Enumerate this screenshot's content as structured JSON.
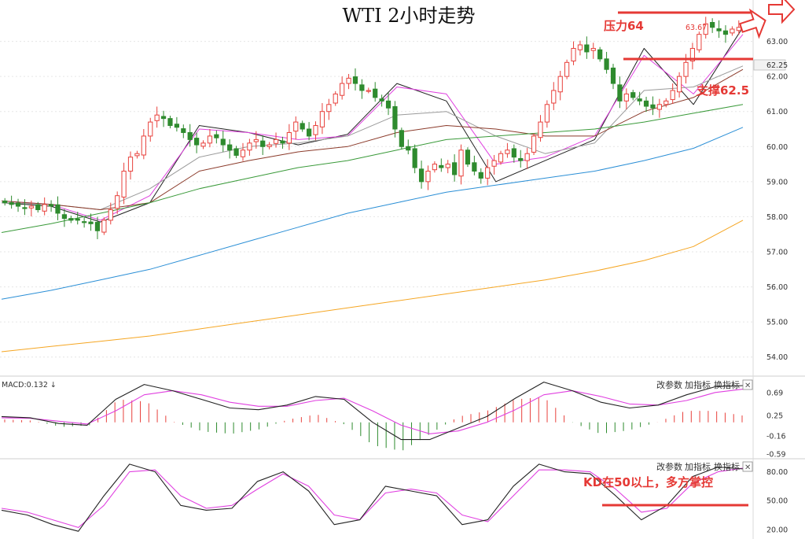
{
  "title": "WTI 2小时走势",
  "annotations": {
    "resistance": "压力64",
    "support": "支撑62.5",
    "kd_note": "KD在50以上，多方掌控",
    "price_label": "63.67",
    "current_price": "62.25"
  },
  "toolbar": {
    "params": "改参数",
    "add": "加指标",
    "switch": "换指标",
    "close": "✕"
  },
  "macd_label": "MACD:0.132 ↓",
  "colors": {
    "up": "#e8413c",
    "down": "#2e8b2e",
    "ma_black": "#222222",
    "ma_magenta": "#e040e0",
    "ma_gray": "#9a9a9a",
    "ma_brown": "#8b3a2a",
    "ma_green": "#3a9a3a",
    "ma_blue": "#2b8fd6",
    "ma_orange": "#f5a623",
    "annotation": "#e53935"
  },
  "chart_data": [
    {
      "type": "candlestick",
      "title": "WTI 2小时走势",
      "ylim": [
        53.5,
        64.0
      ],
      "yticks": [
        "63.00",
        "62.00",
        "61.00",
        "60.00",
        "59.00",
        "58.00",
        "57.00",
        "56.00",
        "55.00",
        "54.00"
      ],
      "ohlc_close": [
        58.4,
        58.35,
        58.3,
        58.25,
        58.3,
        58.2,
        58.35,
        58.3,
        58.1,
        57.95,
        57.9,
        57.9,
        57.85,
        57.8,
        57.6,
        57.9,
        58.2,
        58.6,
        59.3,
        59.7,
        59.8,
        60.3,
        60.7,
        60.9,
        60.8,
        60.6,
        60.55,
        60.4,
        60.2,
        60.05,
        60.1,
        60.3,
        60.25,
        60.05,
        59.9,
        59.75,
        59.9,
        60.1,
        60.2,
        60.0,
        60.05,
        60.2,
        60.1,
        60.4,
        60.7,
        60.5,
        60.3,
        60.6,
        61.0,
        61.2,
        61.5,
        61.8,
        61.95,
        61.8,
        61.6,
        61.6,
        61.4,
        61.3,
        61.1,
        60.5,
        60.0,
        59.9,
        59.4,
        59.0,
        59.3,
        59.5,
        59.4,
        59.5,
        59.2,
        59.9,
        59.5,
        59.3,
        59.1,
        59.4,
        59.6,
        59.8,
        59.9,
        59.7,
        59.6,
        59.8,
        60.3,
        60.7,
        61.2,
        61.6,
        62.0,
        62.4,
        62.8,
        62.9,
        62.7,
        62.8,
        62.5,
        62.2,
        61.8,
        61.3,
        61.5,
        61.4,
        61.3,
        61.15,
        61.1,
        61.2,
        61.3,
        61.6,
        62.0,
        62.4,
        62.8,
        63.2,
        63.5,
        63.4,
        63.3,
        63.2,
        63.35,
        63.4
      ],
      "bar_index_count": 112,
      "ma_lines": [
        {
          "name": "black",
          "values": [
            58.4,
            58.3,
            57.85,
            58.4,
            60.6,
            60.4,
            60.05,
            60.35,
            61.8,
            61.3,
            59.0,
            59.6,
            60.2,
            62.8,
            61.2,
            63.4
          ]
        },
        {
          "name": "magenta",
          "values": [
            58.45,
            58.35,
            57.9,
            58.6,
            60.5,
            60.4,
            60.2,
            60.3,
            61.7,
            61.5,
            59.5,
            59.7,
            60.3,
            62.6,
            61.5,
            63.2
          ]
        },
        {
          "name": "gray",
          "values": [
            58.4,
            58.35,
            58.2,
            58.8,
            59.7,
            60.0,
            60.1,
            60.3,
            60.9,
            61.0,
            60.3,
            59.8,
            60.1,
            61.6,
            61.7,
            62.3
          ]
        },
        {
          "name": "brown",
          "values": [
            58.45,
            58.35,
            58.2,
            58.4,
            59.3,
            59.6,
            59.85,
            60.0,
            60.4,
            60.6,
            60.5,
            60.3,
            60.3,
            61.0,
            61.4,
            62.2
          ]
        },
        {
          "name": "green",
          "values": [
            57.55,
            57.8,
            58.1,
            58.4,
            58.8,
            59.1,
            59.4,
            59.6,
            59.9,
            60.2,
            60.3,
            60.4,
            60.5,
            60.7,
            60.95,
            61.2
          ]
        },
        {
          "name": "blue",
          "values": [
            55.65,
            55.9,
            56.2,
            56.5,
            56.9,
            57.3,
            57.7,
            58.1,
            58.4,
            58.7,
            58.9,
            59.1,
            59.3,
            59.6,
            59.95,
            60.55
          ]
        },
        {
          "name": "orange",
          "values": [
            54.15,
            54.3,
            54.45,
            54.6,
            54.8,
            55.0,
            55.2,
            55.4,
            55.6,
            55.8,
            56.0,
            56.2,
            56.45,
            56.75,
            57.15,
            57.9
          ]
        }
      ]
    },
    {
      "type": "macd",
      "yticks": [
        "0.69",
        "0.25",
        "-0.16",
        "-0.59"
      ],
      "ylim": [
        -0.62,
        0.75
      ],
      "dif": [
        0.1,
        0.08,
        -0.02,
        -0.05,
        0.4,
        0.66,
        0.55,
        0.4,
        0.25,
        0.22,
        0.3,
        0.45,
        0.4,
        0.0,
        -0.3,
        -0.3,
        -0.1,
        0.1,
        0.42,
        0.7,
        0.55,
        0.35,
        0.25,
        0.3,
        0.48,
        0.62,
        0.64
      ],
      "dea": [
        0.08,
        0.07,
        0.02,
        -0.03,
        0.2,
        0.48,
        0.55,
        0.48,
        0.35,
        0.28,
        0.28,
        0.38,
        0.42,
        0.2,
        -0.05,
        -0.2,
        -0.15,
        0.0,
        0.22,
        0.48,
        0.55,
        0.45,
        0.32,
        0.3,
        0.38,
        0.52,
        0.58
      ],
      "hist": [
        0.05,
        0.03,
        -0.08,
        -0.05,
        0.4,
        0.36,
        0.0,
        -0.16,
        -0.2,
        -0.12,
        0.05,
        0.14,
        -0.04,
        -0.4,
        -0.5,
        -0.2,
        0.1,
        0.2,
        0.4,
        0.44,
        0.0,
        -0.2,
        -0.14,
        0.0,
        0.2,
        0.2,
        0.12
      ]
    },
    {
      "type": "kd",
      "yticks": [
        "80.00",
        "50.00",
        "20.00"
      ],
      "ylim": [
        10,
        92
      ],
      "k": [
        40,
        35,
        25,
        18,
        55,
        88,
        80,
        45,
        40,
        42,
        70,
        80,
        60,
        25,
        30,
        65,
        60,
        55,
        25,
        30,
        65,
        88,
        80,
        78,
        55,
        30,
        45,
        75,
        85,
        83
      ],
      "d": [
        42,
        38,
        30,
        22,
        45,
        80,
        82,
        55,
        42,
        45,
        62,
        78,
        65,
        35,
        30,
        58,
        62,
        58,
        35,
        28,
        55,
        82,
        82,
        80,
        62,
        38,
        42,
        68,
        80,
        84
      ]
    }
  ]
}
